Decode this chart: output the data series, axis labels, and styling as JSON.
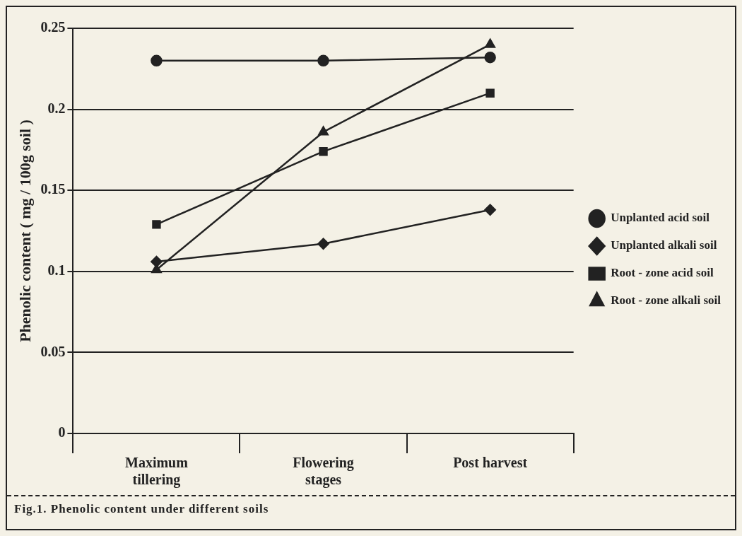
{
  "chart_data": {
    "type": "line",
    "ylabel": "Phenolic content ( mg / 100g soil )",
    "categories": [
      "Maximum tillering",
      "Flowering stages",
      "Post harvest"
    ],
    "series": [
      {
        "name": "Unplanted acid soil",
        "color": "#222222",
        "marker": "circle",
        "values": [
          0.23,
          0.23,
          0.232
        ]
      },
      {
        "name": "Unplanted alkali soil",
        "color": "#222222",
        "marker": "diamond",
        "values": [
          0.106,
          0.117,
          0.138
        ]
      },
      {
        "name": "Root - zone acid soil",
        "color": "#222222",
        "marker": "square",
        "values": [
          0.129,
          0.174,
          0.21
        ]
      },
      {
        "name": "Root - zone alkali soil",
        "color": "#222222",
        "marker": "triangle",
        "values": [
          0.101,
          0.186,
          0.24
        ]
      }
    ],
    "ylim": [
      0,
      0.25
    ],
    "yticks": [
      0,
      0.05,
      0.1,
      0.15,
      0.2,
      0.25
    ],
    "grid": "y",
    "legend": "right",
    "line_style": "solid",
    "annotations": [
      "Fig.1. Phenolic content under different soils"
    ]
  }
}
